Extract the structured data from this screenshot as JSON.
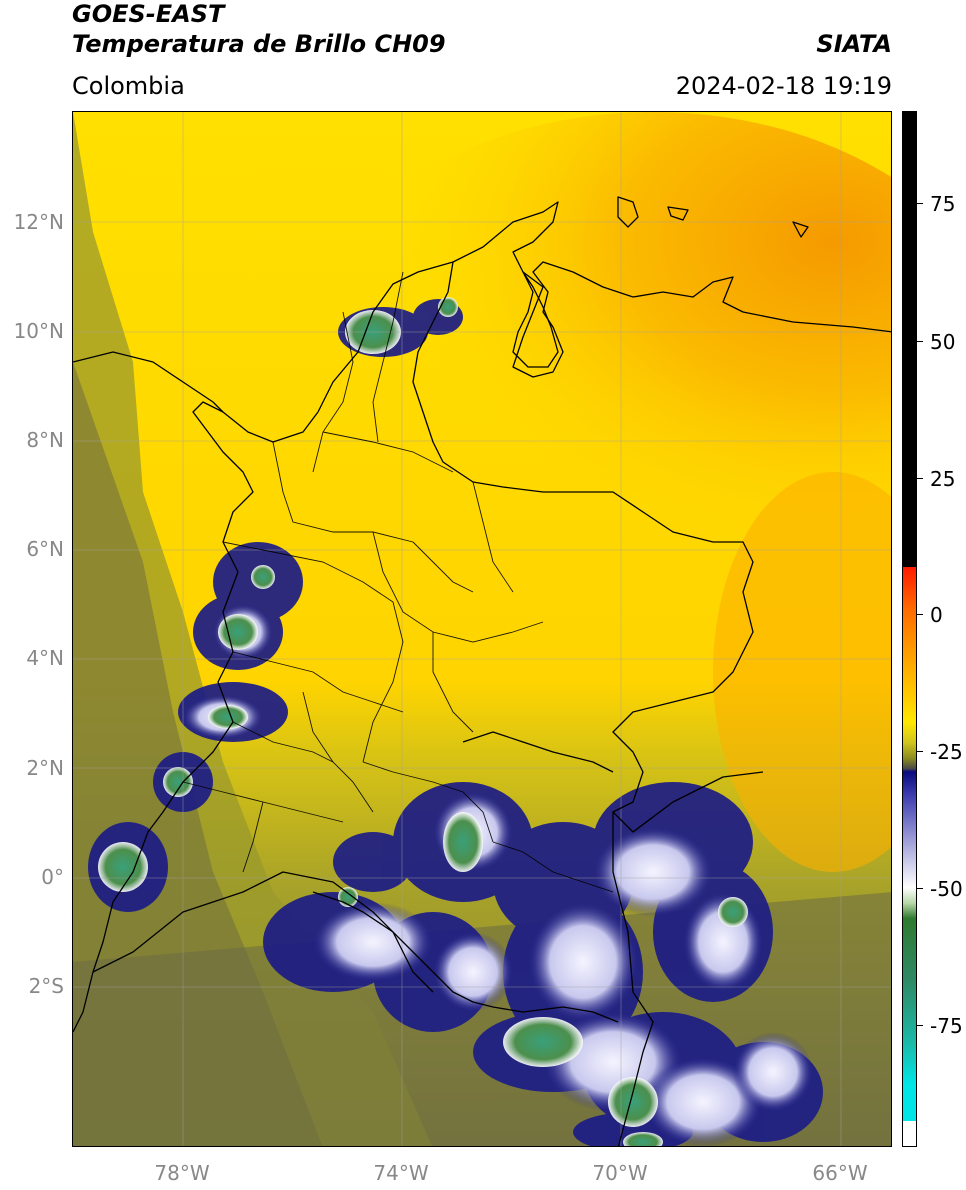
{
  "header": {
    "satellite": "GOES-EAST",
    "product": "Temperatura de Brillo CH09",
    "agency": "SIATA",
    "region": "Colombia",
    "datetime": "2024-02-18 19:19"
  },
  "map": {
    "lat_ticks": [
      "12°N",
      "10°N",
      "8°N",
      "6°N",
      "4°N",
      "2°N",
      "0°",
      "2°S"
    ],
    "lon_ticks": [
      "78°W",
      "74°W",
      "70°W",
      "66°W"
    ]
  },
  "colorbar": {
    "ticks": [
      "75",
      "50",
      "25",
      "0",
      "-25",
      "-50",
      "-75"
    ],
    "colors": {
      "black": "#000000",
      "red": "#ff1a00",
      "orange": "#ff9a00",
      "yellow": "#ffe800",
      "olive": "#8c8c1e",
      "navy": "#0a0a80",
      "white": "#ffffff",
      "green": "#2f7a2f",
      "cyan": "#00e5e5"
    }
  },
  "imagery_colors": {
    "sea_orange": "#f7a600",
    "land_yellow": "#ffd600",
    "olive": "#a8a524",
    "dark_olive": "#6d6b3a",
    "storm_navy": "#1e1f8a",
    "cloud_white": "#f2f2ff",
    "cloud_green": "#3f9b55"
  }
}
